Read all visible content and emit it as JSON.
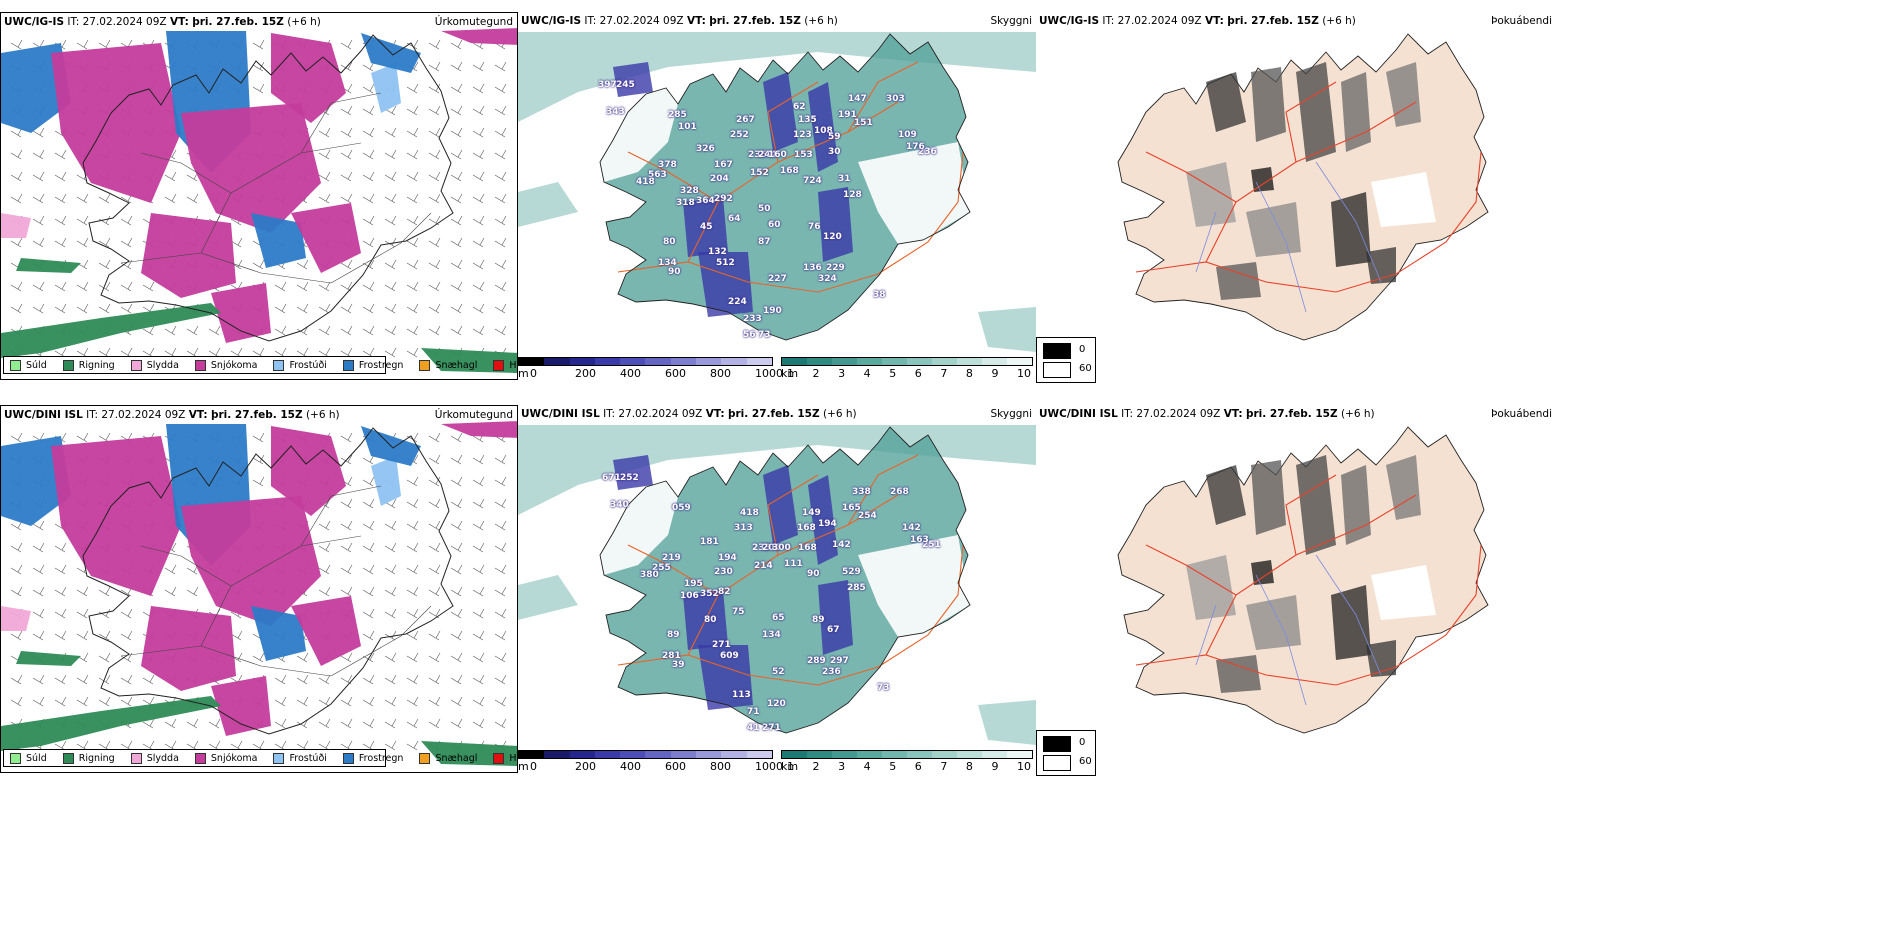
{
  "rows": [
    {
      "model": "UWC/IG-IS",
      "ptype_panel": {
        "header": {
          "model": "UWC/IG-IS",
          "it": "IT: 27.02.2024 09Z",
          "vt_label": "VT:",
          "vt": "þri. 27.feb. 15Z",
          "lead": "(+6 h)"
        },
        "title": "Úrkomutegund"
      },
      "ceiling_panel": {
        "header": {
          "model": "UWC/IG-IS",
          "it": "IT: 27.02.2024 09Z",
          "vt_label": "VT:",
          "vt": "þri. 27.feb. 15Z",
          "lead": "(+6 h)"
        },
        "title": "Skyggni",
        "labels": [
          "397",
          "245",
          "343",
          "285",
          "267",
          "252",
          "236",
          "326",
          "167",
          "244",
          "160",
          "153",
          "135",
          "123",
          "147",
          "191",
          "151",
          "108",
          "109",
          "303",
          "236",
          "30",
          "176",
          "378",
          "563",
          "418",
          "204",
          "152",
          "168",
          "724",
          "31",
          "128",
          "328",
          "318",
          "364",
          "292",
          "64",
          "45",
          "60",
          "76",
          "120",
          "80",
          "132",
          "512",
          "87",
          "136",
          "229",
          "134",
          "90",
          "227",
          "324",
          "224",
          "190",
          "233",
          "56",
          "73",
          "38",
          "101",
          "59",
          "62",
          "50"
        ]
      },
      "fog_panel": {
        "header": {
          "model": "UWC/IG-IS",
          "it": "IT: 27.02.2024 09Z",
          "vt_label": "VT:",
          "vt": "þri. 27.feb. 15Z",
          "lead": "(+6 h)"
        },
        "title": "Þokuábendi"
      }
    },
    {
      "model": "UWC/DINI ISL",
      "ptype_panel": {
        "header": {
          "model": "UWC/DINI ISL",
          "it": "IT: 27.02.2024 09Z",
          "vt_label": "VT:",
          "vt": "þri. 27.feb. 15Z",
          "lead": "(+6 h)"
        },
        "title": "Úrkomutegund"
      },
      "ceiling_panel": {
        "header": {
          "model": "UWC/DINI ISL",
          "it": "IT: 27.02.2024 09Z",
          "vt_label": "VT:",
          "vt": "þri. 27.feb. 15Z",
          "lead": "(+6 h)"
        },
        "title": "Skyggni",
        "labels": [
          "671",
          "252",
          "340",
          "059",
          "418",
          "313",
          "233",
          "181",
          "194",
          "206",
          "300",
          "168",
          "149",
          "168",
          "338",
          "165",
          "254",
          "194",
          "142",
          "268",
          "251",
          "142",
          "163",
          "219",
          "255",
          "380",
          "230",
          "214",
          "111",
          "90",
          "529",
          "285",
          "195",
          "106",
          "352",
          "82",
          "75",
          "80",
          "65",
          "89",
          "67",
          "89",
          "271",
          "609",
          "134",
          "289",
          "297",
          "281",
          "39",
          "52",
          "236",
          "113",
          "120",
          "71",
          "41",
          "271",
          "73"
        ]
      },
      "fog_panel": {
        "header": {
          "model": "UWC/DINI ISL",
          "it": "IT: 27.02.2024 09Z",
          "vt_label": "VT:",
          "vt": "þri. 27.feb. 15Z",
          "lead": "(+6 h)"
        },
        "title": "Þokuábendi"
      }
    }
  ],
  "ptype_legend": [
    {
      "label": "Súld",
      "color": "#90ee90"
    },
    {
      "label": "Rigning",
      "color": "#2e8b57"
    },
    {
      "label": "Slydda",
      "color": "#f0a8d8"
    },
    {
      "label": "Snjókoma",
      "color": "#c43c9c"
    },
    {
      "label": "Frostúði",
      "color": "#8fc3f2"
    },
    {
      "label": "Frostregn",
      "color": "#2c7bc7"
    },
    {
      "label": "Snæhagl",
      "color": "#f0a020"
    },
    {
      "label": "Haglél",
      "color": "#e01010"
    }
  ],
  "ceiling_scale": {
    "unit": "m",
    "ticks": [
      "0",
      "200",
      "400",
      "600",
      "800",
      "1000"
    ],
    "colors": [
      "#000000",
      "#1a1a6b",
      "#26268f",
      "#3a3aa8",
      "#4e4eb8",
      "#6565c4",
      "#7e7ecf",
      "#9898da",
      "#b2b2e4",
      "#cbcbee"
    ]
  },
  "visibility_scale": {
    "unit": "km",
    "ticks": [
      "1",
      "2",
      "3",
      "4",
      "5",
      "6",
      "7",
      "8",
      "9",
      "10"
    ],
    "colors": [
      "#1c7a74",
      "#2f8a82",
      "#449a90",
      "#5aa99f",
      "#71b7ae",
      "#8ac5bd",
      "#a3d2cb",
      "#bcdfda",
      "#d4ebe8",
      "#ecf6f4"
    ]
  },
  "fog_scale": {
    "entries": [
      {
        "label": "0",
        "color": "#000000"
      },
      {
        "label": "60",
        "color": "#ffffff"
      }
    ]
  },
  "colors": {
    "frostregn": "#2c7bc7",
    "snjokoma": "#c43c9c",
    "rigning": "#2e8b57",
    "visibility_low": "#2f8a82",
    "ceiling_low": "#3a3aa8",
    "fog_land": "#f5e1d2",
    "roads": "#e8632a"
  }
}
